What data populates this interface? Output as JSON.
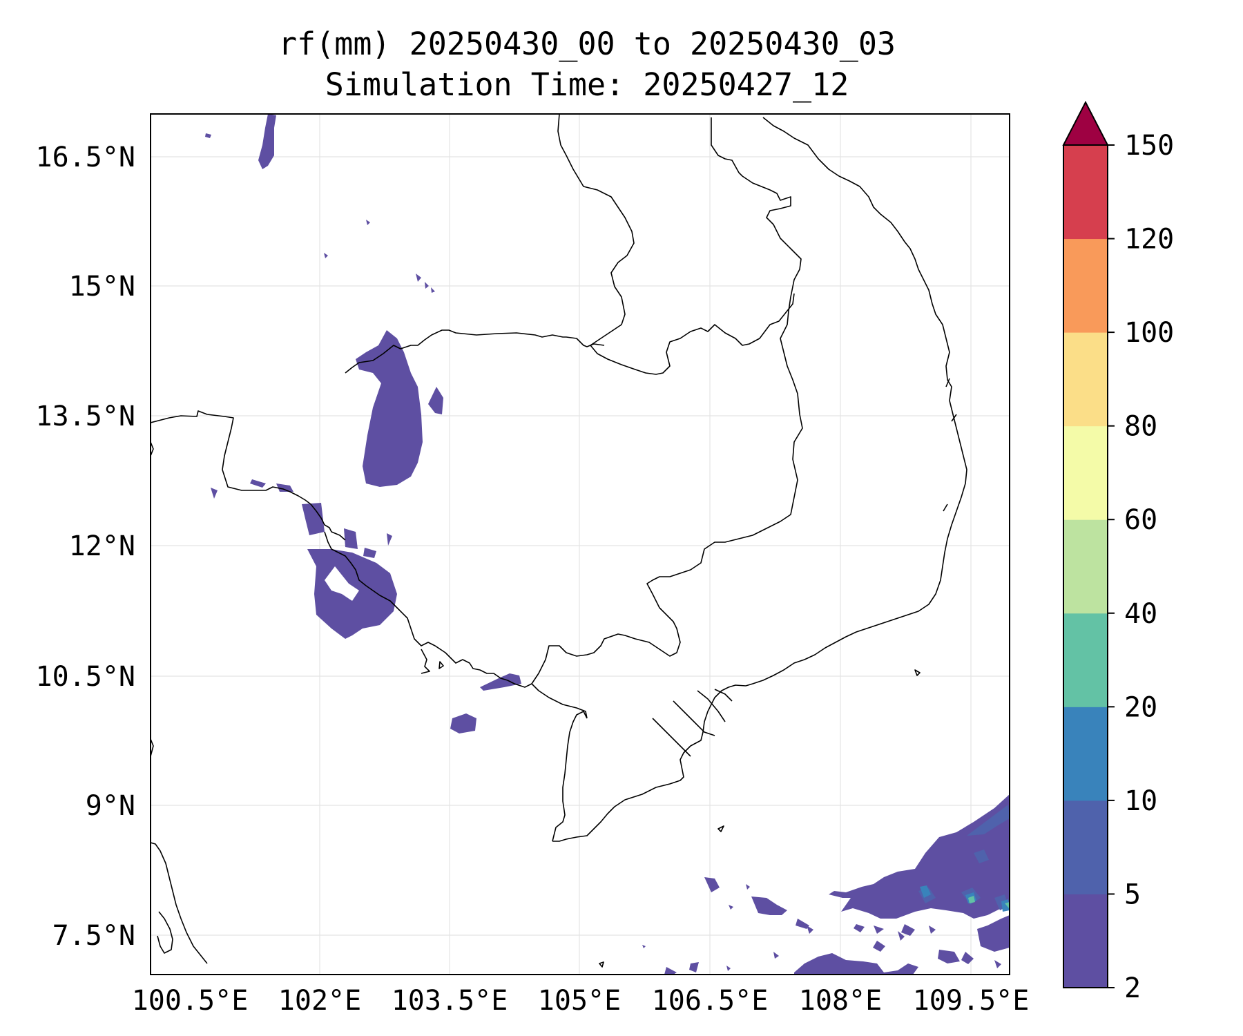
{
  "title": {
    "line1": "rf(mm) 20250430_00 to 20250430_03",
    "line2": "Simulation Time: 20250427_12"
  },
  "map": {
    "lon_ticks": [
      "100.5°E",
      "102°E",
      "103.5°E",
      "105°E",
      "106.5°E",
      "108°E",
      "109.5°E"
    ],
    "lat_ticks": [
      "16.5°N",
      "15°N",
      "13.5°N",
      "12°N",
      "10.5°N",
      "9°N",
      "7.5°N"
    ],
    "grid": true
  },
  "colorbar": {
    "levels": [
      "2",
      "5",
      "10",
      "20",
      "40",
      "60",
      "80",
      "100",
      "120",
      "150"
    ],
    "colors": [
      "#5e4fa2",
      "#4f62ac",
      "#3983bb",
      "#63c2a5",
      "#bde3a0",
      "#f4fba8",
      "#fbde88",
      "#f99a5a",
      "#d63f4e",
      "#9e0142"
    ],
    "extend": "max"
  }
}
